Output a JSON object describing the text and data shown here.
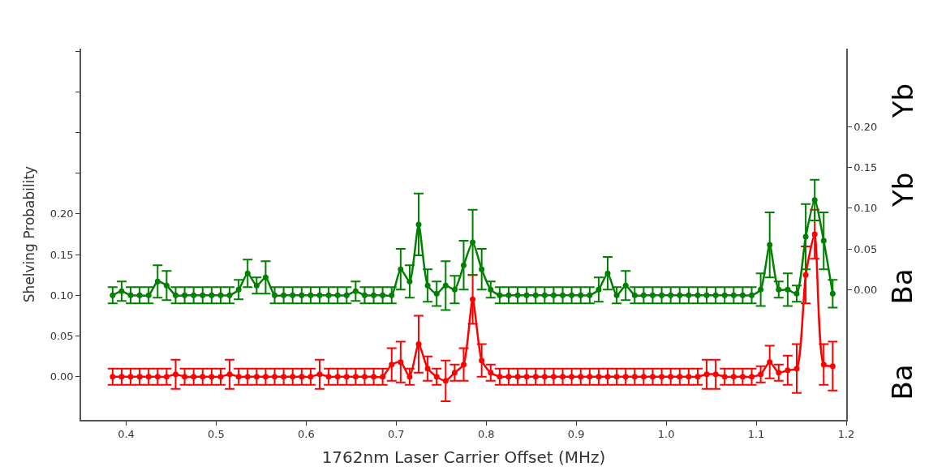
{
  "chart_data": {
    "type": "line",
    "xlabel": "1762nm Laser Carrier Offset (MHz)",
    "ylabel": "Shelving Probability",
    "x": [
      0.385,
      0.395,
      0.405,
      0.415,
      0.425,
      0.435,
      0.445,
      0.455,
      0.465,
      0.475,
      0.485,
      0.495,
      0.505,
      0.515,
      0.525,
      0.535,
      0.545,
      0.555,
      0.565,
      0.575,
      0.585,
      0.595,
      0.605,
      0.615,
      0.625,
      0.635,
      0.645,
      0.655,
      0.665,
      0.675,
      0.685,
      0.695,
      0.705,
      0.715,
      0.725,
      0.735,
      0.745,
      0.755,
      0.765,
      0.775,
      0.785,
      0.795,
      0.805,
      0.815,
      0.825,
      0.835,
      0.845,
      0.855,
      0.865,
      0.875,
      0.885,
      0.895,
      0.905,
      0.915,
      0.925,
      0.935,
      0.945,
      0.955,
      0.965,
      0.975,
      0.985,
      0.995,
      1.005,
      1.015,
      1.025,
      1.035,
      1.045,
      1.055,
      1.065,
      1.075,
      1.085,
      1.095,
      1.105,
      1.115,
      1.125,
      1.135,
      1.145,
      1.155,
      1.165,
      1.175,
      1.185
    ],
    "series": [
      {
        "color": "#ff0000",
        "values": [
          0,
          0,
          0,
          0,
          0,
          0,
          0,
          0.003,
          0,
          0,
          0,
          0,
          0,
          0.003,
          0,
          0,
          0,
          0,
          0,
          0,
          0,
          0,
          0,
          0.003,
          0,
          0,
          0,
          0,
          0,
          0,
          0,
          0.015,
          0.018,
          0,
          0.04,
          0.01,
          0,
          -0.005,
          0.005,
          0.015,
          0.095,
          0.02,
          0.005,
          0,
          0,
          0,
          0,
          0,
          0,
          0,
          0,
          0,
          0,
          0,
          0,
          0,
          0,
          0,
          0,
          0,
          0,
          0,
          0,
          0,
          0,
          0,
          0.003,
          0.003,
          0,
          0,
          0,
          0,
          0.003,
          0.018,
          0.005,
          0.008,
          0.01,
          0.125,
          0.175,
          0.015,
          0.013
        ],
        "errors": [
          0.01,
          0.01,
          0.01,
          0.01,
          0.01,
          0.01,
          0.01,
          0.018,
          0.01,
          0.01,
          0.01,
          0.01,
          0.01,
          0.018,
          0.01,
          0.01,
          0.01,
          0.01,
          0.01,
          0.01,
          0.01,
          0.01,
          0.01,
          0.018,
          0.01,
          0.01,
          0.01,
          0.01,
          0.01,
          0.01,
          0.01,
          0.02,
          0.025,
          0.01,
          0.035,
          0.015,
          0.01,
          0.025,
          0.01,
          0.02,
          0.03,
          0.02,
          0.01,
          0.01,
          0.01,
          0.01,
          0.01,
          0.01,
          0.01,
          0.01,
          0.01,
          0.01,
          0.01,
          0.01,
          0.01,
          0.01,
          0.01,
          0.01,
          0.01,
          0.01,
          0.01,
          0.01,
          0.01,
          0.01,
          0.01,
          0.01,
          0.018,
          0.018,
          0.01,
          0.01,
          0.01,
          0.01,
          0.01,
          0.02,
          0.01,
          0.018,
          0.03,
          0.035,
          0.03,
          0.025,
          0.03
        ]
      },
      {
        "color": "#008000",
        "axis": "y2",
        "values": [
          -0.007,
          -0.002,
          -0.007,
          -0.007,
          -0.007,
          0.01,
          0.005,
          -0.007,
          -0.007,
          -0.007,
          -0.007,
          -0.007,
          -0.007,
          -0.007,
          0.0,
          0.02,
          0.005,
          0.015,
          -0.007,
          -0.007,
          -0.007,
          -0.007,
          -0.007,
          -0.007,
          -0.007,
          -0.007,
          -0.007,
          -0.002,
          -0.007,
          -0.007,
          -0.007,
          -0.007,
          0.025,
          0.01,
          0.08,
          0.005,
          -0.005,
          0.005,
          0.0,
          0.03,
          0.058,
          0.025,
          0.0,
          -0.007,
          -0.007,
          -0.007,
          -0.007,
          -0.007,
          -0.007,
          -0.007,
          -0.007,
          -0.007,
          -0.007,
          -0.007,
          0.0,
          0.02,
          -0.007,
          0.005,
          -0.007,
          -0.007,
          -0.007,
          -0.007,
          -0.007,
          -0.007,
          -0.007,
          -0.007,
          -0.007,
          -0.007,
          -0.007,
          -0.007,
          -0.007,
          -0.007,
          0.0,
          0.055,
          0.0,
          0.0,
          -0.005,
          0.065,
          0.11,
          0.06,
          -0.005
        ],
        "errors": [
          0.01,
          0.012,
          0.01,
          0.01,
          0.01,
          0.02,
          0.018,
          0.01,
          0.01,
          0.01,
          0.01,
          0.01,
          0.01,
          0.01,
          0.012,
          0.017,
          0.01,
          0.02,
          0.01,
          0.01,
          0.01,
          0.01,
          0.01,
          0.01,
          0.01,
          0.01,
          0.01,
          0.012,
          0.01,
          0.01,
          0.01,
          0.01,
          0.025,
          0.02,
          0.038,
          0.02,
          0.015,
          0.03,
          0.017,
          0.03,
          0.04,
          0.025,
          0.01,
          0.01,
          0.01,
          0.01,
          0.01,
          0.01,
          0.01,
          0.01,
          0.01,
          0.01,
          0.01,
          0.01,
          0.015,
          0.02,
          0.01,
          0.018,
          0.01,
          0.01,
          0.01,
          0.01,
          0.01,
          0.01,
          0.01,
          0.01,
          0.01,
          0.01,
          0.01,
          0.01,
          0.01,
          0.01,
          0.02,
          0.04,
          0.01,
          0.02,
          0.01,
          0.04,
          0.025,
          0.035,
          0.017
        ]
      }
    ],
    "xlim": [
      0.35,
      1.2
    ],
    "xticks": [
      0.4,
      0.5,
      0.6,
      0.7,
      0.8,
      0.9,
      {
        "value": 1,
        "label": "1.0"
      },
      1.1,
      1.2
    ],
    "ylim": [
      -0.053,
      0.403
    ],
    "yticks": [
      {
        "value": 0,
        "label": "0.00"
      },
      {
        "value": 0.05,
        "label": "0.05"
      },
      {
        "value": 0.1,
        "label": "0.10"
      },
      {
        "value": 0.15,
        "label": "0.15"
      },
      {
        "value": 0.2,
        "label": "0.20"
      },
      {
        "value": 0.25,
        "label": null
      },
      {
        "value": 0.3,
        "label": null
      },
      {
        "value": 0.35,
        "label": null
      },
      {
        "value": 0.4,
        "label": null
      }
    ],
    "y2lim": [
      -0.16,
      0.296
    ],
    "y2ticks": [
      {
        "value": 0,
        "label": "0.00"
      },
      {
        "value": 0.05,
        "label": "0.05"
      },
      {
        "value": 0.1,
        "label": "0.10"
      },
      {
        "value": 0.15,
        "label": "0.15"
      },
      {
        "value": 0.2,
        "label": "0.20"
      }
    ],
    "annotations": [
      "Yb",
      "Yb",
      "Ba",
      "Ba"
    ],
    "marker": "circle",
    "line_style": "solid",
    "legend": false
  }
}
